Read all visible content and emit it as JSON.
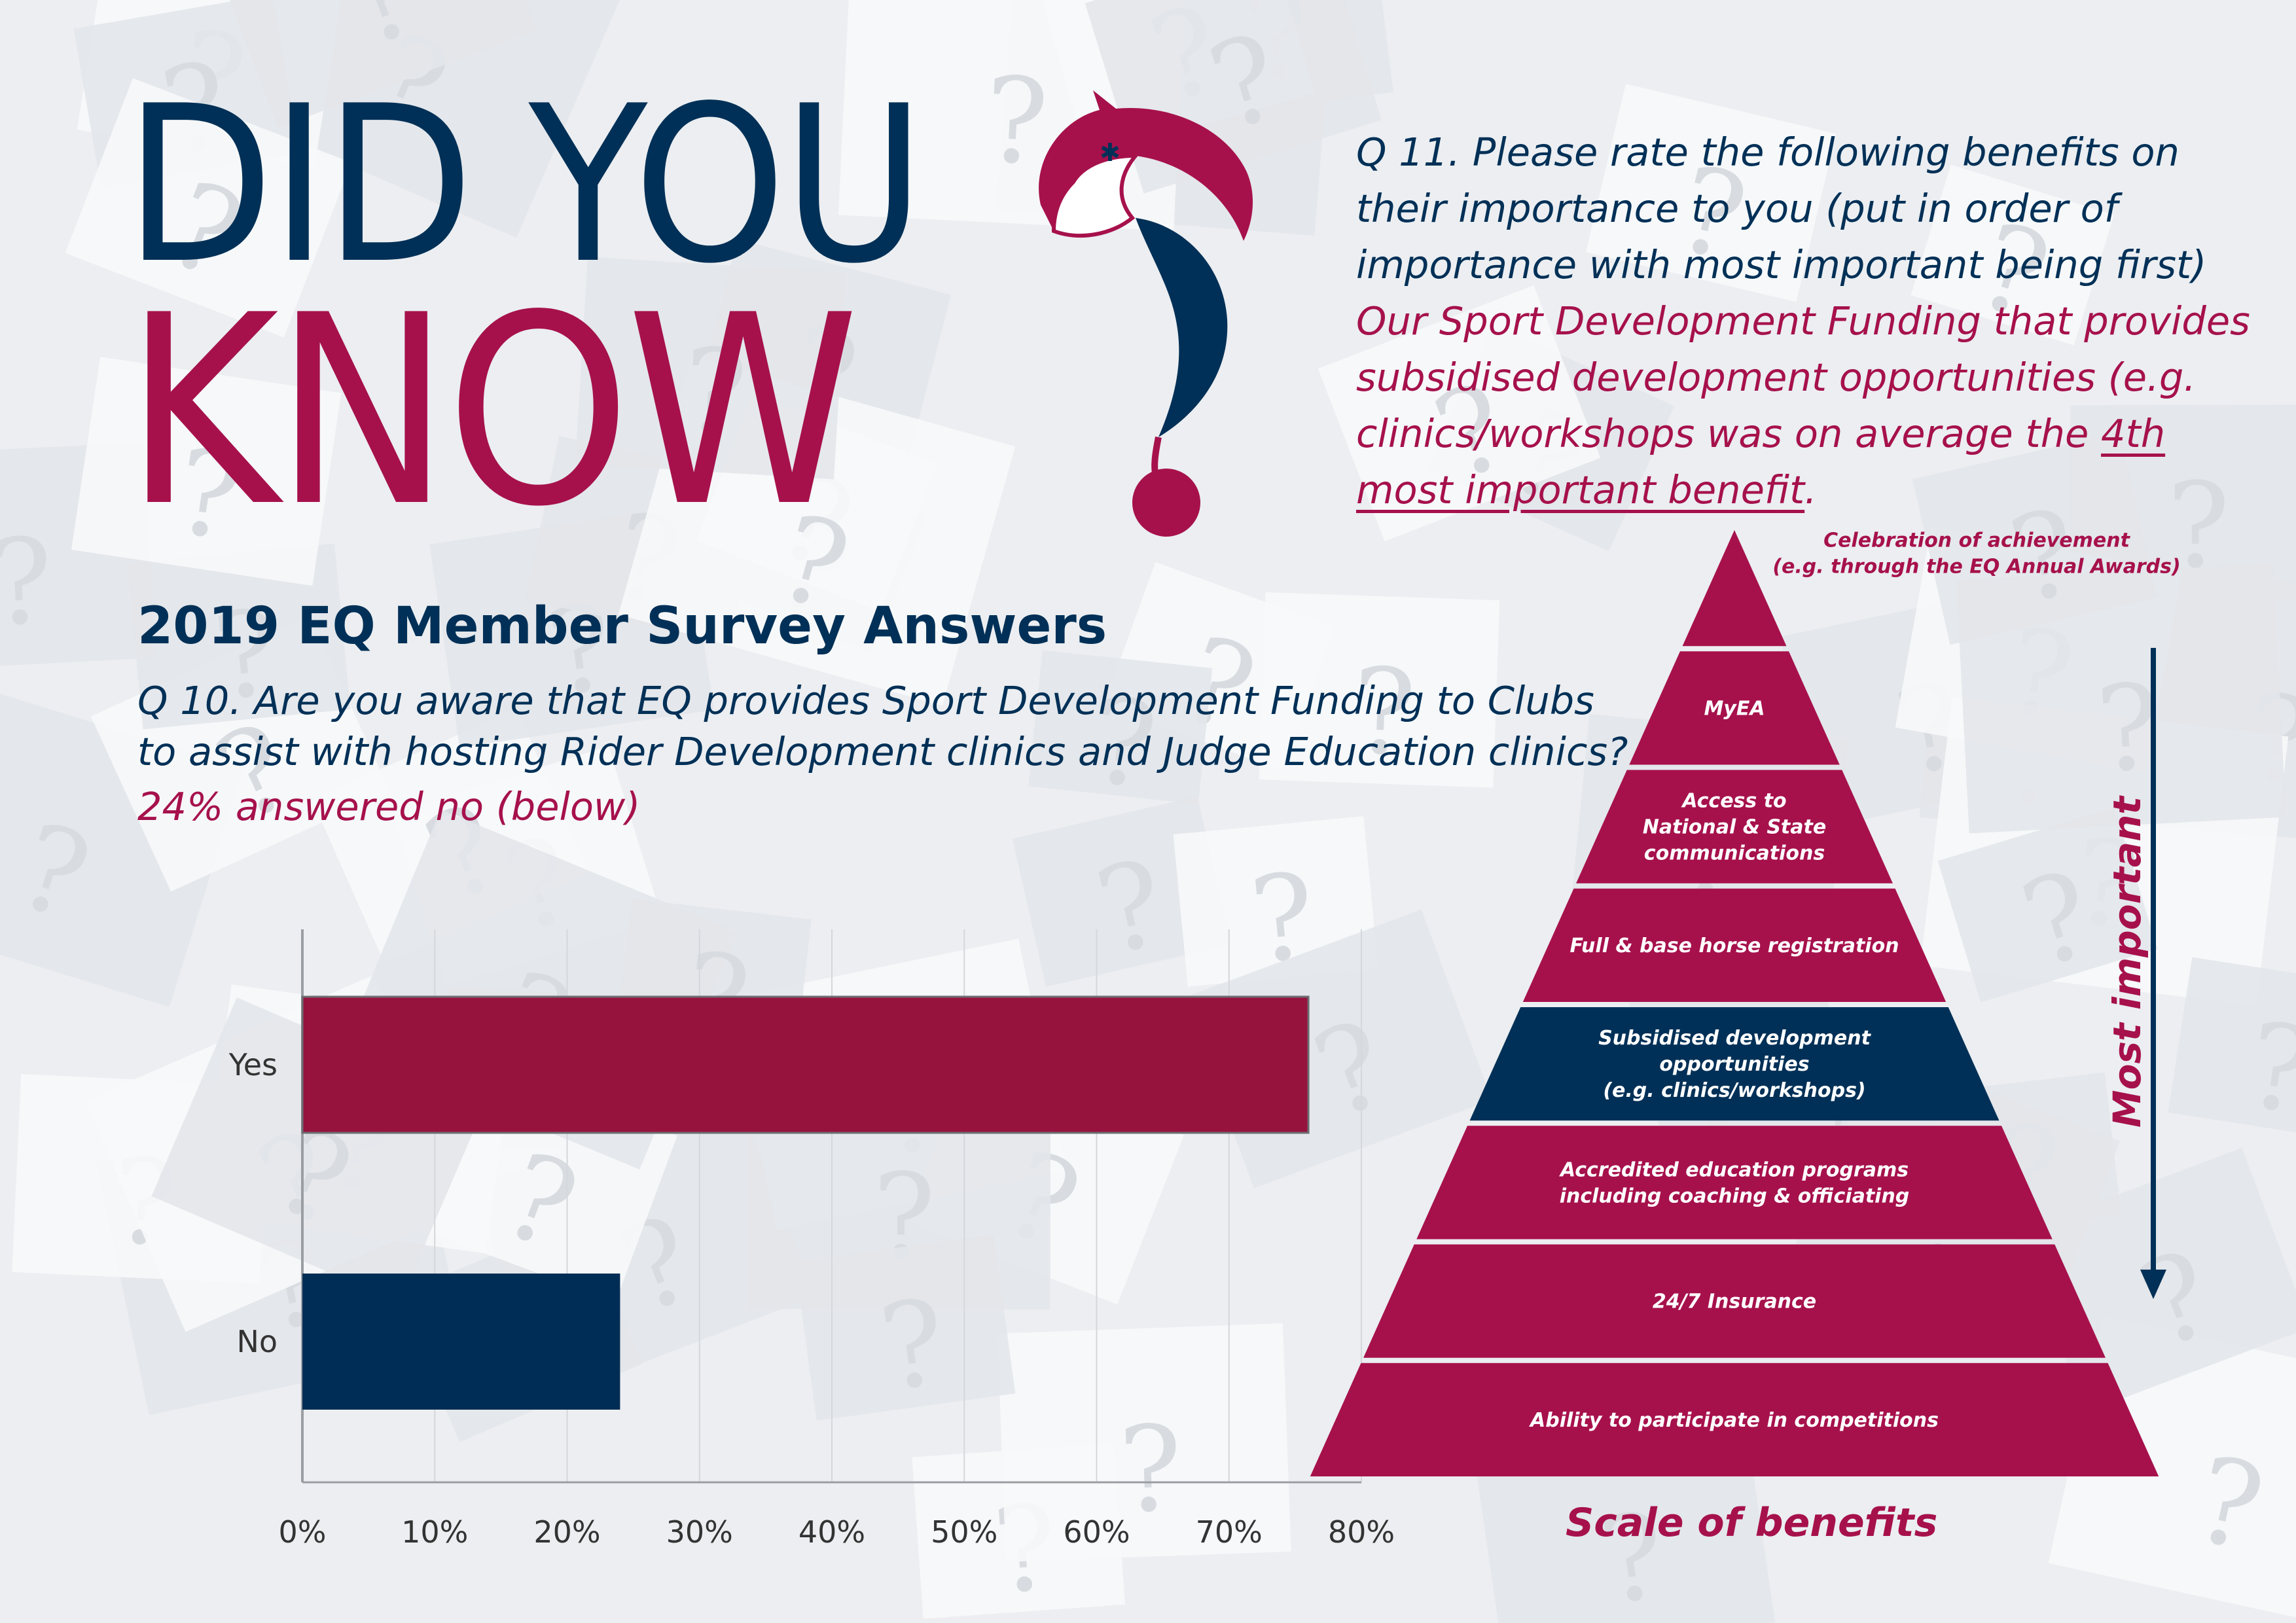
{
  "headline": {
    "line1": "DID YOU",
    "line2": "KNOW"
  },
  "colors": {
    "navy": "#003057",
    "crimson": "#a6114c",
    "bar_yes": "#96133e",
    "bar_no": "#002d55",
    "background": "#eceef1"
  },
  "q11": {
    "question": "Q 11. Please rate the following benefits on their importance to you (put in order of importance with most important being first)",
    "answer_lead": "Our Sport Development Funding that provides subsidised development opportunities (e.g. clinics/workshops was on average the ",
    "answer_highlight": "4th most important benefit",
    "answer_tail": "."
  },
  "survey_title": "2019 EQ Member Survey Answers",
  "q10": {
    "question": "Q 10. Are you aware that EQ provides Sport Development Funding to Clubs to assist with hosting Rider Development clinics and Judge Education clinics?",
    "answer": "24% answered no (below)"
  },
  "chart_data": [
    {
      "type": "bar",
      "orientation": "horizontal",
      "categories": [
        "Yes",
        "No"
      ],
      "values": [
        76,
        24
      ],
      "xlim": [
        0,
        80
      ],
      "x_ticks": [
        "0%",
        "10%",
        "20%",
        "30%",
        "40%",
        "50%",
        "60%",
        "70%",
        "80%"
      ],
      "grid": true
    },
    {
      "type": "pyramid",
      "levels": [
        {
          "label": "Celebration of achievement\n(e.g. through the EQ Annual Awards)",
          "highlight": false
        },
        {
          "label": "MyEA",
          "highlight": false
        },
        {
          "label": "Access to\nNational & State\ncommunications",
          "highlight": false
        },
        {
          "label": "Full & base horse registration",
          "highlight": false
        },
        {
          "label": "Subsidised development\nopportunities\n(e.g. clinics/workshops)",
          "highlight": true
        },
        {
          "label": "Accredited education programs\nincluding coaching & officiating",
          "highlight": false
        },
        {
          "label": "24/7 Insurance",
          "highlight": false
        },
        {
          "label": "Ability to participate in competitions",
          "highlight": false
        }
      ],
      "xlabel": "Scale of benefits",
      "ylabel": "Most important"
    }
  ]
}
